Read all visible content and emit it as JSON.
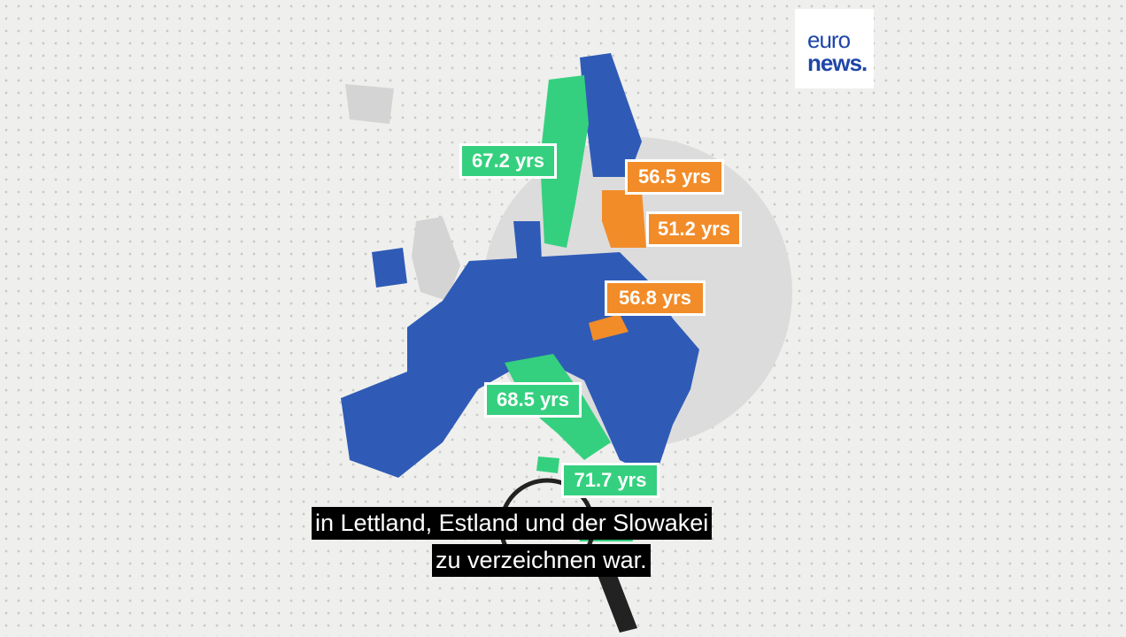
{
  "logo": {
    "line1": "euro",
    "line2": "news."
  },
  "labels": [
    {
      "text": "67.2 yrs",
      "color": "#35d07f"
    },
    {
      "text": "56.5 yrs",
      "color": "#f28c28"
    },
    {
      "text": "51.2 yrs",
      "color": "#f28c28"
    },
    {
      "text": "56.8 yrs",
      "color": "#f28c28"
    },
    {
      "text": "68.5 yrs",
      "color": "#35d07f"
    },
    {
      "text": "71.7 yrs",
      "color": "#35d07f"
    }
  ],
  "subtitle": [
    "in Lettland, Estland und der Slowakei",
    "zu verzeichnen war."
  ]
}
